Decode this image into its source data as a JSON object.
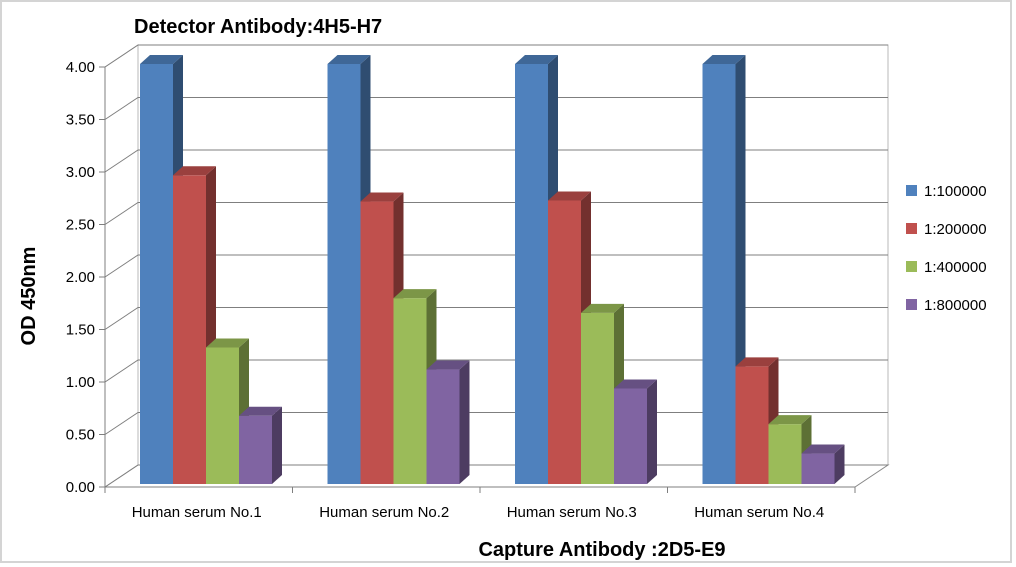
{
  "chart_data": {
    "type": "bar",
    "title": "Detector Antibody:4H5-H7",
    "xlabel": "Capture Antibody :2D5-E9",
    "ylabel": "OD 450nm",
    "categories": [
      "Human serum No.1",
      "Human serum No.2",
      "Human serum No.3",
      "Human serum No.4"
    ],
    "series": [
      {
        "name": "1:100000",
        "color": "#4f81bd",
        "values": [
          4.0,
          4.0,
          4.0,
          4.0
        ]
      },
      {
        "name": "1:200000",
        "color": "#c0504d",
        "values": [
          2.94,
          2.69,
          2.7,
          1.12
        ]
      },
      {
        "name": "1:400000",
        "color": "#9bbb59",
        "values": [
          1.3,
          1.77,
          1.63,
          0.57
        ]
      },
      {
        "name": "1:800000",
        "color": "#8064a2",
        "values": [
          0.65,
          1.09,
          0.91,
          0.29
        ]
      }
    ],
    "yticks": [
      "0.00",
      "0.50",
      "1.00",
      "1.50",
      "2.00",
      "2.50",
      "3.00",
      "3.50",
      "4.00"
    ],
    "ylim": [
      0,
      4
    ],
    "grid": true,
    "legend_position": "right",
    "style": "3d-clustered-column"
  }
}
